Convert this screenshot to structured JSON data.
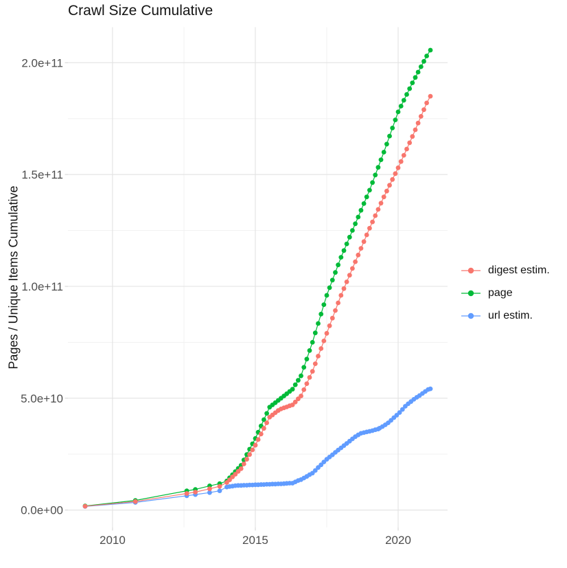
{
  "title": "Crawl Size Cumulative",
  "y_axis_title": "Pages / Unique Items Cumulative",
  "legend": {
    "items": [
      {
        "label": "digest estim.",
        "color": "#F8766D"
      },
      {
        "label": "page",
        "color": "#00BA38"
      },
      {
        "label": "url estim.",
        "color": "#619CFF"
      }
    ]
  },
  "colors": {
    "background": "#ffffff",
    "grid_major": "#e4e4e4",
    "grid_minor": "#f1f1f1",
    "tick_mark": "#d6d6d6",
    "axis_text": "#4d4d4d",
    "title_text": "#141414"
  },
  "chart_data": {
    "type": "line",
    "title": "Crawl Size Cumulative",
    "xlabel": "",
    "ylabel": "Pages / Unique Items Cumulative",
    "grid": true,
    "legend_position": "right",
    "value_scale": 1000000000.0,
    "x_range": [
      2008.44,
      2021.73
    ],
    "y_range": [
      -7.8,
      215.9
    ],
    "x_ticks": {
      "major": [
        2010,
        2015,
        2020
      ],
      "labels": [
        "2010",
        "2015",
        "2020"
      ],
      "minor": [
        2012.5,
        2017.5
      ]
    },
    "y_ticks": {
      "major": [
        0,
        50,
        100,
        150,
        200
      ],
      "labels": [
        "0.0e+00",
        "5.0e+10",
        "1.0e+11",
        "1.5e+11",
        "2.0e+11"
      ],
      "minor": [
        25,
        75,
        125,
        175
      ]
    },
    "series": [
      {
        "name": "digest estim.",
        "color": "#F8766D",
        "points": [
          [
            2009.04,
            1.7
          ],
          [
            2010.8,
            3.8
          ],
          [
            2012.6,
            7.4
          ],
          [
            2012.9,
            8.0
          ],
          [
            2013.4,
            9.5
          ],
          [
            2013.75,
            10.6
          ],
          [
            2014.0,
            12.3
          ],
          [
            2014.1,
            13.5
          ],
          [
            2014.2,
            14.8
          ],
          [
            2014.3,
            16.0
          ],
          [
            2014.4,
            17.3
          ],
          [
            2014.5,
            18.5
          ],
          [
            2014.6,
            20.6
          ],
          [
            2014.7,
            22.7
          ],
          [
            2014.8,
            24.8
          ],
          [
            2014.9,
            26.9
          ],
          [
            2015.0,
            29.0
          ],
          [
            2015.1,
            31.5
          ],
          [
            2015.2,
            34.0
          ],
          [
            2015.3,
            36.5
          ],
          [
            2015.4,
            39.0
          ],
          [
            2015.5,
            41.5
          ],
          [
            2015.6,
            42.5
          ],
          [
            2015.7,
            43.5
          ],
          [
            2015.8,
            44.5
          ],
          [
            2015.9,
            45.2
          ],
          [
            2016.0,
            45.7
          ],
          [
            2016.1,
            46.1
          ],
          [
            2016.2,
            46.6
          ],
          [
            2016.3,
            47.0
          ],
          [
            2016.4,
            48.3
          ],
          [
            2016.5,
            49.7
          ],
          [
            2016.6,
            51.0
          ],
          [
            2016.7,
            53.8
          ],
          [
            2016.8,
            56.5
          ],
          [
            2016.9,
            59.3
          ],
          [
            2017.0,
            62.0
          ],
          [
            2017.1,
            65.4
          ],
          [
            2017.2,
            68.8
          ],
          [
            2017.3,
            72.2
          ],
          [
            2017.4,
            75.6
          ],
          [
            2017.5,
            79.0
          ],
          [
            2017.6,
            82.4
          ],
          [
            2017.7,
            85.8
          ],
          [
            2017.8,
            89.2
          ],
          [
            2017.9,
            92.6
          ],
          [
            2018.0,
            96.0
          ],
          [
            2018.1,
            99.0
          ],
          [
            2018.2,
            102.0
          ],
          [
            2018.3,
            105.0
          ],
          [
            2018.4,
            108.0
          ],
          [
            2018.5,
            111.0
          ],
          [
            2018.6,
            114.0
          ],
          [
            2018.7,
            117.0
          ],
          [
            2018.8,
            120.0
          ],
          [
            2018.9,
            123.0
          ],
          [
            2019.0,
            126.0
          ],
          [
            2019.1,
            128.8
          ],
          [
            2019.2,
            131.6
          ],
          [
            2019.3,
            134.4
          ],
          [
            2019.4,
            137.2
          ],
          [
            2019.5,
            140.0
          ],
          [
            2019.6,
            142.6
          ],
          [
            2019.7,
            145.2
          ],
          [
            2019.8,
            147.8
          ],
          [
            2019.9,
            150.4
          ],
          [
            2020.0,
            153.0
          ],
          [
            2020.1,
            155.8
          ],
          [
            2020.2,
            158.6
          ],
          [
            2020.3,
            161.4
          ],
          [
            2020.4,
            164.2
          ],
          [
            2020.5,
            167.0
          ],
          [
            2020.6,
            170.0
          ],
          [
            2020.7,
            173.0
          ],
          [
            2020.8,
            176.0
          ],
          [
            2020.9,
            179.0
          ],
          [
            2021.0,
            182.0
          ],
          [
            2021.13,
            185.0
          ]
        ]
      },
      {
        "name": "page",
        "color": "#00BA38",
        "points": [
          [
            2009.04,
            1.8
          ],
          [
            2010.8,
            4.3
          ],
          [
            2012.6,
            8.6
          ],
          [
            2012.9,
            9.2
          ],
          [
            2013.4,
            10.8
          ],
          [
            2013.75,
            11.8
          ],
          [
            2014.0,
            13.0
          ],
          [
            2014.1,
            14.4
          ],
          [
            2014.2,
            15.8
          ],
          [
            2014.3,
            17.2
          ],
          [
            2014.4,
            18.6
          ],
          [
            2014.5,
            20.0
          ],
          [
            2014.6,
            22.4
          ],
          [
            2014.7,
            24.8
          ],
          [
            2014.8,
            27.2
          ],
          [
            2014.9,
            29.6
          ],
          [
            2015.0,
            32.0
          ],
          [
            2015.1,
            34.8
          ],
          [
            2015.2,
            37.6
          ],
          [
            2015.3,
            40.4
          ],
          [
            2015.4,
            43.2
          ],
          [
            2015.5,
            46.0
          ],
          [
            2015.6,
            47.0
          ],
          [
            2015.7,
            48.0
          ],
          [
            2015.8,
            49.0
          ],
          [
            2015.9,
            50.0
          ],
          [
            2016.0,
            51.0
          ],
          [
            2016.1,
            52.0
          ],
          [
            2016.2,
            53.0
          ],
          [
            2016.3,
            54.0
          ],
          [
            2016.4,
            56.0
          ],
          [
            2016.5,
            58.0
          ],
          [
            2016.6,
            60.0
          ],
          [
            2016.7,
            63.8
          ],
          [
            2016.8,
            67.5
          ],
          [
            2016.9,
            71.3
          ],
          [
            2017.0,
            75.0
          ],
          [
            2017.1,
            79.2
          ],
          [
            2017.2,
            83.4
          ],
          [
            2017.3,
            87.6
          ],
          [
            2017.4,
            91.8
          ],
          [
            2017.5,
            96.0
          ],
          [
            2017.6,
            99.4
          ],
          [
            2017.7,
            102.8
          ],
          [
            2017.8,
            106.2
          ],
          [
            2017.9,
            109.6
          ],
          [
            2018.0,
            113.0
          ],
          [
            2018.1,
            116.0
          ],
          [
            2018.2,
            119.0
          ],
          [
            2018.3,
            122.0
          ],
          [
            2018.4,
            125.0
          ],
          [
            2018.5,
            128.0
          ],
          [
            2018.6,
            131.0
          ],
          [
            2018.7,
            134.0
          ],
          [
            2018.8,
            137.0
          ],
          [
            2018.9,
            140.0
          ],
          [
            2019.0,
            143.0
          ],
          [
            2019.1,
            146.4
          ],
          [
            2019.2,
            149.8
          ],
          [
            2019.3,
            153.2
          ],
          [
            2019.4,
            156.6
          ],
          [
            2019.5,
            160.0
          ],
          [
            2019.6,
            163.6
          ],
          [
            2019.7,
            167.2
          ],
          [
            2019.8,
            170.8
          ],
          [
            2019.9,
            174.4
          ],
          [
            2020.0,
            178.0
          ],
          [
            2020.1,
            180.6
          ],
          [
            2020.2,
            183.2
          ],
          [
            2020.3,
            185.8
          ],
          [
            2020.4,
            188.4
          ],
          [
            2020.5,
            191.0
          ],
          [
            2020.6,
            193.4
          ],
          [
            2020.7,
            195.8
          ],
          [
            2020.8,
            198.2
          ],
          [
            2020.9,
            200.6
          ],
          [
            2021.0,
            203.0
          ],
          [
            2021.13,
            205.6
          ]
        ]
      },
      {
        "name": "url estim.",
        "color": "#619CFF",
        "points": [
          [
            2009.04,
            1.6
          ],
          [
            2010.8,
            3.4
          ],
          [
            2012.6,
            6.4
          ],
          [
            2012.9,
            6.9
          ],
          [
            2013.4,
            7.8
          ],
          [
            2013.75,
            8.6
          ],
          [
            2014.0,
            10.3
          ],
          [
            2014.1,
            10.5
          ],
          [
            2014.2,
            10.7
          ],
          [
            2014.3,
            10.9
          ],
          [
            2014.4,
            11.0
          ],
          [
            2014.5,
            11.0
          ],
          [
            2014.6,
            11.1
          ],
          [
            2014.7,
            11.1
          ],
          [
            2014.8,
            11.2
          ],
          [
            2014.9,
            11.2
          ],
          [
            2015.0,
            11.3
          ],
          [
            2015.1,
            11.3
          ],
          [
            2015.2,
            11.4
          ],
          [
            2015.3,
            11.4
          ],
          [
            2015.4,
            11.5
          ],
          [
            2015.5,
            11.5
          ],
          [
            2015.6,
            11.6
          ],
          [
            2015.7,
            11.6
          ],
          [
            2015.8,
            11.7
          ],
          [
            2015.9,
            11.7
          ],
          [
            2016.0,
            11.8
          ],
          [
            2016.1,
            11.9
          ],
          [
            2016.2,
            12.0
          ],
          [
            2016.3,
            12.0
          ],
          [
            2016.4,
            12.6
          ],
          [
            2016.5,
            13.2
          ],
          [
            2016.6,
            13.6
          ],
          [
            2016.7,
            14.3
          ],
          [
            2016.8,
            15.0
          ],
          [
            2016.9,
            15.8
          ],
          [
            2017.0,
            16.5
          ],
          [
            2017.1,
            17.7
          ],
          [
            2017.2,
            19.0
          ],
          [
            2017.3,
            20.2
          ],
          [
            2017.4,
            21.5
          ],
          [
            2017.5,
            22.7
          ],
          [
            2017.6,
            23.7
          ],
          [
            2017.7,
            24.7
          ],
          [
            2017.8,
            25.8
          ],
          [
            2017.9,
            26.8
          ],
          [
            2018.0,
            27.8
          ],
          [
            2018.1,
            28.8
          ],
          [
            2018.2,
            29.8
          ],
          [
            2018.3,
            30.8
          ],
          [
            2018.4,
            31.8
          ],
          [
            2018.5,
            32.8
          ],
          [
            2018.6,
            33.6
          ],
          [
            2018.7,
            34.3
          ],
          [
            2018.8,
            34.6
          ],
          [
            2018.9,
            34.9
          ],
          [
            2019.0,
            35.2
          ],
          [
            2019.1,
            35.5
          ],
          [
            2019.2,
            35.9
          ],
          [
            2019.3,
            36.2
          ],
          [
            2019.35,
            36.6
          ],
          [
            2019.45,
            37.3
          ],
          [
            2019.55,
            38.1
          ],
          [
            2019.65,
            39.0
          ],
          [
            2019.75,
            40.1
          ],
          [
            2019.85,
            41.3
          ],
          [
            2019.95,
            42.4
          ],
          [
            2020.05,
            43.6
          ],
          [
            2020.15,
            45.0
          ],
          [
            2020.25,
            46.4
          ],
          [
            2020.35,
            47.5
          ],
          [
            2020.45,
            48.5
          ],
          [
            2020.55,
            49.5
          ],
          [
            2020.65,
            50.4
          ],
          [
            2020.75,
            51.2
          ],
          [
            2020.85,
            52.1
          ],
          [
            2020.95,
            53.0
          ],
          [
            2021.05,
            53.9
          ],
          [
            2021.13,
            54.2
          ]
        ]
      }
    ]
  }
}
